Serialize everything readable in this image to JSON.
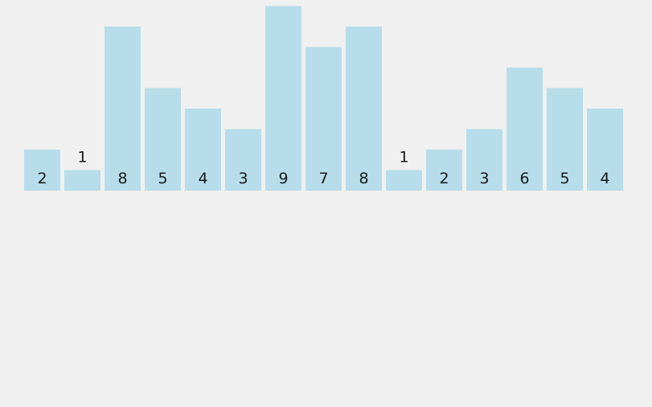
{
  "chart_data": {
    "type": "bar",
    "values": [
      2,
      1,
      8,
      5,
      4,
      3,
      9,
      7,
      8,
      1,
      2,
      3,
      6,
      5,
      4
    ],
    "bar_labels": [
      "2",
      "1",
      "8",
      "5",
      "4",
      "3",
      "9",
      "7",
      "8",
      "1",
      "2",
      "3",
      "6",
      "5",
      "4"
    ],
    "ylim": [
      0,
      9
    ],
    "bar_color": "#b6dde9",
    "label_color": "#1a1a1a",
    "background": "#f0f0f0",
    "grid": false,
    "legend": "none"
  }
}
